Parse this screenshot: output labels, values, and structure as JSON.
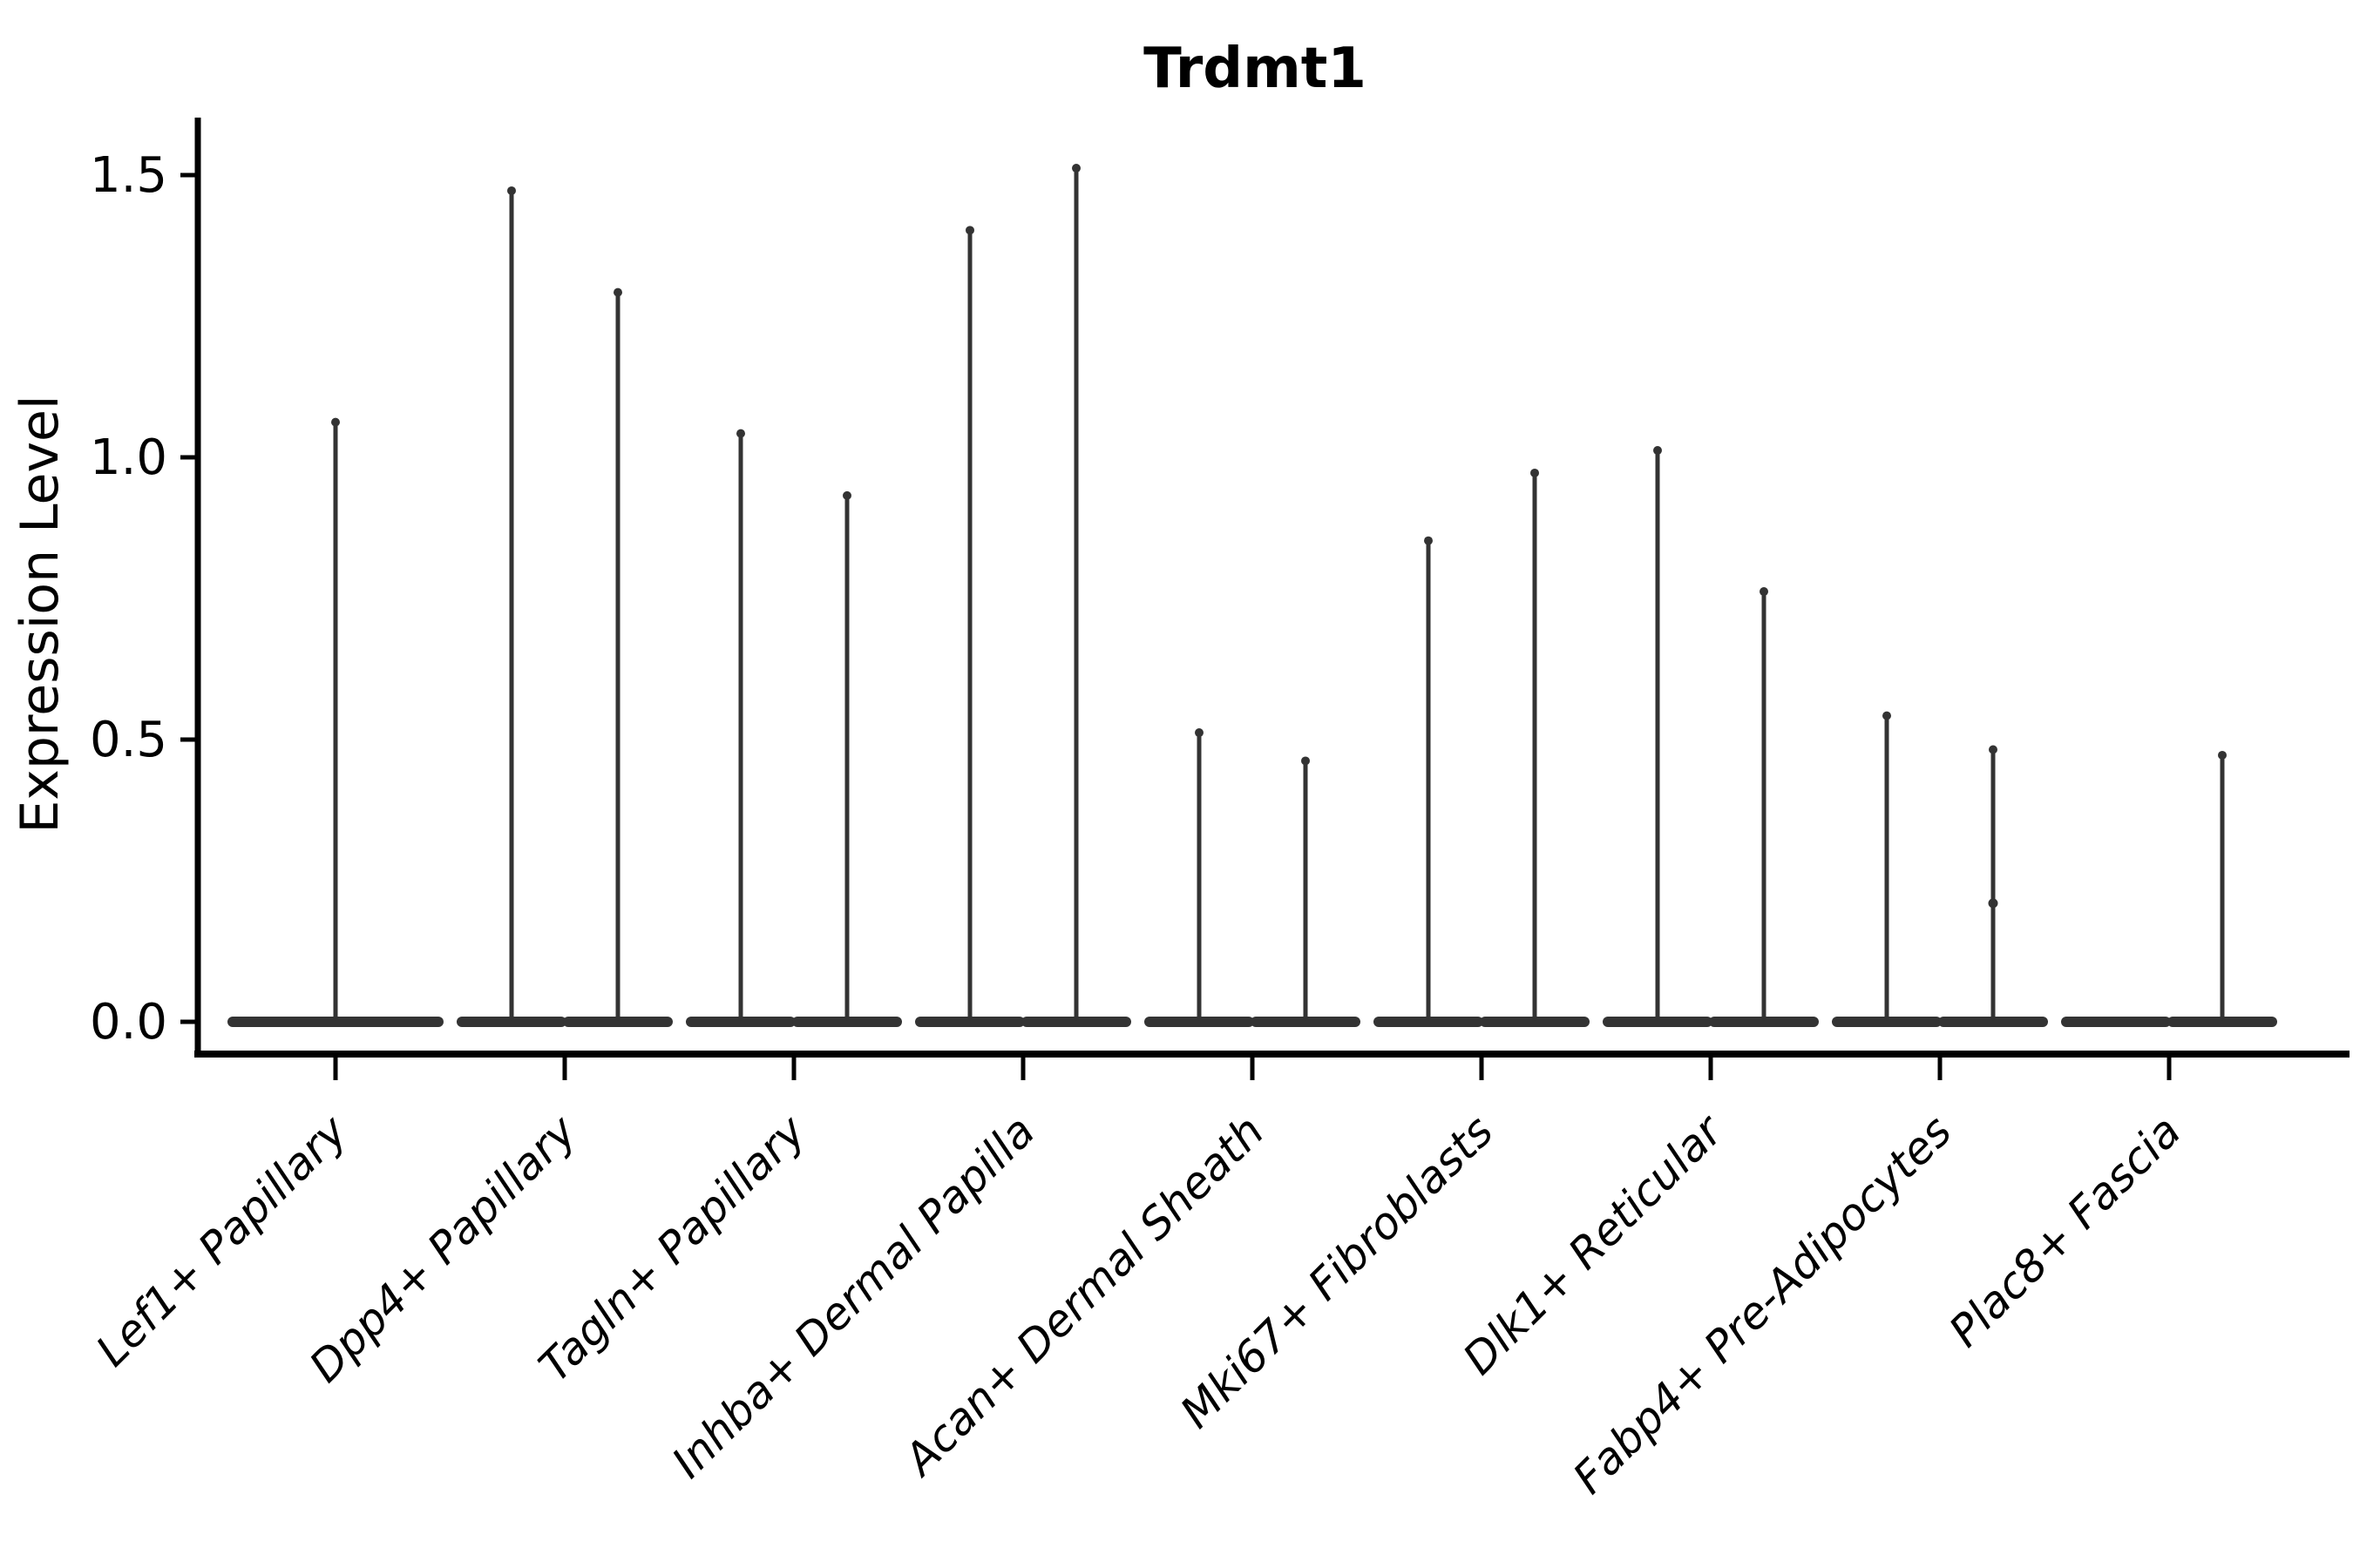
{
  "chart_data": {
    "type": "violin",
    "title": "Trdmt1",
    "ylabel": "Expression Level",
    "xlabel": "",
    "ylim": [
      0,
      1.6
    ],
    "yticks": [
      "0.0",
      "0.5",
      "1.0",
      "1.5"
    ],
    "ytick_values": [
      0.0,
      0.5,
      1.0,
      1.5
    ],
    "legend": "none",
    "grid": false,
    "categories": [
      {
        "label": "Lef1+ Papillary",
        "violins": [
          {
            "position": "center",
            "max": 1.07
          }
        ]
      },
      {
        "label": "Dpp4+ Papillary",
        "violins": [
          {
            "position": "left",
            "max": 1.48
          },
          {
            "position": "right",
            "max": 1.3
          }
        ]
      },
      {
        "label": "Tagln+ Papillary",
        "violins": [
          {
            "position": "left",
            "max": 1.05
          },
          {
            "position": "right",
            "max": 0.94
          }
        ]
      },
      {
        "label": "Inhba+ Dermal Papilla",
        "violins": [
          {
            "position": "left",
            "max": 1.41
          },
          {
            "position": "right",
            "max": 1.52
          }
        ]
      },
      {
        "label": "Acan+ Dermal Sheath",
        "violins": [
          {
            "position": "left",
            "max": 0.52
          },
          {
            "position": "right",
            "max": 0.47
          }
        ]
      },
      {
        "label": "Mki67+ Fibroblasts",
        "violins": [
          {
            "position": "left",
            "max": 0.86
          },
          {
            "position": "right",
            "max": 0.98
          }
        ]
      },
      {
        "label": "Dlk1+ Reticular",
        "violins": [
          {
            "position": "left",
            "max": 1.02
          },
          {
            "position": "right",
            "max": 0.77
          }
        ]
      },
      {
        "label": "Fabp4+ Pre-Adipocytes",
        "violins": [
          {
            "position": "left",
            "max": 0.55
          },
          {
            "position": "right",
            "max": 0.49,
            "extra_point": 0.21
          }
        ]
      },
      {
        "label": "Plac8+ Fascia",
        "violins": [
          {
            "position": "left",
            "max": 0.0
          },
          {
            "position": "right",
            "max": 0.48
          }
        ]
      }
    ],
    "colors": {
      "violin_ink": "#333333",
      "axis_ink": "#000000",
      "background": "#ffffff"
    }
  }
}
